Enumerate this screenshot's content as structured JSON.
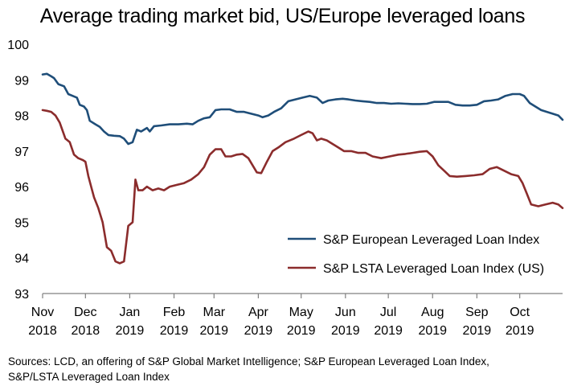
{
  "chart_data": {
    "type": "line",
    "title": "Average trading market bid, US/Europe leveraged loans",
    "xlabel": "",
    "ylabel": "",
    "ylim": [
      93,
      100
    ],
    "yticks": [
      "93",
      "94",
      "95",
      "96",
      "97",
      "98",
      "99",
      "100"
    ],
    "x_range": [
      "2018-11-01",
      "2019-10-31"
    ],
    "xticks": [
      {
        "month": "Nov",
        "year": "2018",
        "date": "2018-11-01"
      },
      {
        "month": "Dec",
        "year": "2018",
        "date": "2018-12-01"
      },
      {
        "month": "Jan",
        "year": "2019",
        "date": "2019-01-01"
      },
      {
        "month": "Feb",
        "year": "2019",
        "date": "2019-02-01"
      },
      {
        "month": "Mar",
        "year": "2019",
        "date": "2019-03-01"
      },
      {
        "month": "Apr",
        "year": "2019",
        "date": "2019-04-01"
      },
      {
        "month": "May",
        "year": "2019",
        "date": "2019-05-01"
      },
      {
        "month": "Jun",
        "year": "2019",
        "date": "2019-06-01"
      },
      {
        "month": "Jul",
        "year": "2019",
        "date": "2019-07-01"
      },
      {
        "month": "Aug",
        "year": "2019",
        "date": "2019-08-01"
      },
      {
        "month": "Sep",
        "year": "2019",
        "date": "2019-09-01"
      },
      {
        "month": "Oct",
        "year": "2019",
        "date": "2019-10-01"
      }
    ],
    "grid": false,
    "legend_position": "bottom-right",
    "series": [
      {
        "name": "S&P European Leveraged Loan Index",
        "color": "#1f4e79",
        "points": [
          [
            "2018-11-01",
            99.15
          ],
          [
            "2018-11-04",
            99.17
          ],
          [
            "2018-11-07",
            99.1
          ],
          [
            "2018-11-09",
            99.05
          ],
          [
            "2018-11-12",
            98.88
          ],
          [
            "2018-11-16",
            98.82
          ],
          [
            "2018-11-19",
            98.6
          ],
          [
            "2018-11-22",
            98.55
          ],
          [
            "2018-11-25",
            98.5
          ],
          [
            "2018-11-27",
            98.3
          ],
          [
            "2018-11-30",
            98.25
          ],
          [
            "2018-12-02",
            98.15
          ],
          [
            "2018-12-04",
            97.85
          ],
          [
            "2018-12-08",
            97.75
          ],
          [
            "2018-12-11",
            97.68
          ],
          [
            "2018-12-14",
            97.55
          ],
          [
            "2018-12-17",
            97.45
          ],
          [
            "2018-12-21",
            97.43
          ],
          [
            "2018-12-25",
            97.42
          ],
          [
            "2018-12-28",
            97.35
          ],
          [
            "2018-12-31",
            97.2
          ],
          [
            "2019-01-03",
            97.25
          ],
          [
            "2019-01-06",
            97.6
          ],
          [
            "2019-01-09",
            97.55
          ],
          [
            "2019-01-13",
            97.65
          ],
          [
            "2019-01-15",
            97.55
          ],
          [
            "2019-01-18",
            97.7
          ],
          [
            "2019-01-23",
            97.72
          ],
          [
            "2019-01-29",
            97.75
          ],
          [
            "2019-02-04",
            97.75
          ],
          [
            "2019-02-10",
            97.77
          ],
          [
            "2019-02-14",
            97.75
          ],
          [
            "2019-02-18",
            97.85
          ],
          [
            "2019-02-22",
            97.92
          ],
          [
            "2019-02-26",
            97.95
          ],
          [
            "2019-03-02",
            98.15
          ],
          [
            "2019-03-06",
            98.17
          ],
          [
            "2019-03-12",
            98.17
          ],
          [
            "2019-03-17",
            98.1
          ],
          [
            "2019-03-22",
            98.1
          ],
          [
            "2019-03-27",
            98.05
          ],
          [
            "2019-04-01",
            98.0
          ],
          [
            "2019-04-04",
            97.95
          ],
          [
            "2019-04-08",
            98.0
          ],
          [
            "2019-04-12",
            98.1
          ],
          [
            "2019-04-17",
            98.2
          ],
          [
            "2019-04-22",
            98.4
          ],
          [
            "2019-04-27",
            98.45
          ],
          [
            "2019-05-02",
            98.5
          ],
          [
            "2019-05-07",
            98.55
          ],
          [
            "2019-05-12",
            98.5
          ],
          [
            "2019-05-16",
            98.35
          ],
          [
            "2019-05-20",
            98.42
          ],
          [
            "2019-05-25",
            98.45
          ],
          [
            "2019-05-30",
            98.47
          ],
          [
            "2019-06-03",
            98.45
          ],
          [
            "2019-06-08",
            98.42
          ],
          [
            "2019-06-13",
            98.4
          ],
          [
            "2019-06-18",
            98.38
          ],
          [
            "2019-06-23",
            98.35
          ],
          [
            "2019-06-28",
            98.35
          ],
          [
            "2019-07-03",
            98.33
          ],
          [
            "2019-07-08",
            98.34
          ],
          [
            "2019-07-13",
            98.33
          ],
          [
            "2019-07-18",
            98.32
          ],
          [
            "2019-07-23",
            98.32
          ],
          [
            "2019-07-28",
            98.33
          ],
          [
            "2019-08-02",
            98.38
          ],
          [
            "2019-08-07",
            98.38
          ],
          [
            "2019-08-12",
            98.38
          ],
          [
            "2019-08-17",
            98.3
          ],
          [
            "2019-08-22",
            98.28
          ],
          [
            "2019-08-27",
            98.28
          ],
          [
            "2019-09-01",
            98.3
          ],
          [
            "2019-09-06",
            98.4
          ],
          [
            "2019-09-11",
            98.42
          ],
          [
            "2019-09-16",
            98.45
          ],
          [
            "2019-09-21",
            98.55
          ],
          [
            "2019-09-26",
            98.6
          ],
          [
            "2019-10-01",
            98.6
          ],
          [
            "2019-10-04",
            98.55
          ],
          [
            "2019-10-08",
            98.35
          ],
          [
            "2019-10-12",
            98.25
          ],
          [
            "2019-10-16",
            98.15
          ],
          [
            "2019-10-20",
            98.1
          ],
          [
            "2019-10-24",
            98.05
          ],
          [
            "2019-10-28",
            98.0
          ],
          [
            "2019-10-31",
            97.88
          ]
        ]
      },
      {
        "name": "S&P LSTA Leveraged Loan Index (US)",
        "color": "#8b2c2c",
        "points": [
          [
            "2018-11-01",
            98.15
          ],
          [
            "2018-11-04",
            98.13
          ],
          [
            "2018-11-07",
            98.1
          ],
          [
            "2018-11-10",
            98.0
          ],
          [
            "2018-11-13",
            97.8
          ],
          [
            "2018-11-17",
            97.35
          ],
          [
            "2018-11-20",
            97.25
          ],
          [
            "2018-11-23",
            96.9
          ],
          [
            "2018-11-26",
            96.8
          ],
          [
            "2018-11-29",
            96.75
          ],
          [
            "2018-12-01",
            96.7
          ],
          [
            "2018-12-03",
            96.3
          ],
          [
            "2018-12-05",
            96.0
          ],
          [
            "2018-12-07",
            95.7
          ],
          [
            "2018-12-10",
            95.4
          ],
          [
            "2018-12-13",
            95.0
          ],
          [
            "2018-12-16",
            94.3
          ],
          [
            "2018-12-19",
            94.2
          ],
          [
            "2018-12-22",
            93.9
          ],
          [
            "2018-12-25",
            93.85
          ],
          [
            "2018-12-28",
            93.9
          ],
          [
            "2018-12-31",
            94.9
          ],
          [
            "2019-01-03",
            95.0
          ],
          [
            "2019-01-05",
            96.2
          ],
          [
            "2019-01-07",
            95.9
          ],
          [
            "2019-01-10",
            95.9
          ],
          [
            "2019-01-13",
            96.0
          ],
          [
            "2019-01-17",
            95.9
          ],
          [
            "2019-01-21",
            95.95
          ],
          [
            "2019-01-25",
            95.9
          ],
          [
            "2019-01-29",
            96.0
          ],
          [
            "2019-02-03",
            96.05
          ],
          [
            "2019-02-08",
            96.1
          ],
          [
            "2019-02-13",
            96.2
          ],
          [
            "2019-02-18",
            96.35
          ],
          [
            "2019-02-22",
            96.55
          ],
          [
            "2019-02-26",
            96.9
          ],
          [
            "2019-03-02",
            97.05
          ],
          [
            "2019-03-06",
            97.05
          ],
          [
            "2019-03-09",
            96.85
          ],
          [
            "2019-03-13",
            96.85
          ],
          [
            "2019-03-17",
            96.9
          ],
          [
            "2019-03-21",
            96.92
          ],
          [
            "2019-03-25",
            96.8
          ],
          [
            "2019-03-28",
            96.6
          ],
          [
            "2019-03-31",
            96.4
          ],
          [
            "2019-04-03",
            96.38
          ],
          [
            "2019-04-07",
            96.7
          ],
          [
            "2019-04-11",
            97.0
          ],
          [
            "2019-04-15",
            97.1
          ],
          [
            "2019-04-20",
            97.25
          ],
          [
            "2019-04-26",
            97.35
          ],
          [
            "2019-05-01",
            97.45
          ],
          [
            "2019-05-06",
            97.55
          ],
          [
            "2019-05-09",
            97.5
          ],
          [
            "2019-05-12",
            97.3
          ],
          [
            "2019-05-15",
            97.35
          ],
          [
            "2019-05-19",
            97.3
          ],
          [
            "2019-05-23",
            97.2
          ],
          [
            "2019-05-27",
            97.1
          ],
          [
            "2019-05-31",
            97.0
          ],
          [
            "2019-06-05",
            97.0
          ],
          [
            "2019-06-10",
            96.95
          ],
          [
            "2019-06-15",
            96.95
          ],
          [
            "2019-06-20",
            96.85
          ],
          [
            "2019-06-26",
            96.8
          ],
          [
            "2019-07-02",
            96.85
          ],
          [
            "2019-07-08",
            96.9
          ],
          [
            "2019-07-13",
            96.92
          ],
          [
            "2019-07-18",
            96.95
          ],
          [
            "2019-07-23",
            96.98
          ],
          [
            "2019-07-28",
            97.0
          ],
          [
            "2019-08-01",
            96.85
          ],
          [
            "2019-08-05",
            96.6
          ],
          [
            "2019-08-09",
            96.45
          ],
          [
            "2019-08-13",
            96.3
          ],
          [
            "2019-08-18",
            96.28
          ],
          [
            "2019-08-24",
            96.3
          ],
          [
            "2019-08-30",
            96.32
          ],
          [
            "2019-09-05",
            96.35
          ],
          [
            "2019-09-10",
            96.5
          ],
          [
            "2019-09-15",
            96.55
          ],
          [
            "2019-09-20",
            96.45
          ],
          [
            "2019-09-25",
            96.35
          ],
          [
            "2019-09-30",
            96.3
          ],
          [
            "2019-10-03",
            96.1
          ],
          [
            "2019-10-06",
            95.8
          ],
          [
            "2019-10-09",
            95.5
          ],
          [
            "2019-10-14",
            95.45
          ],
          [
            "2019-10-19",
            95.5
          ],
          [
            "2019-10-24",
            95.55
          ],
          [
            "2019-10-28",
            95.5
          ],
          [
            "2019-10-31",
            95.4
          ]
        ]
      }
    ]
  },
  "footer": {
    "source_line1": "Sources: LCD, an offering of S&P Global Market Intelligence; S&P European Leveraged Loan Index,",
    "source_line2": "S&P/LSTA Leveraged Loan Index"
  }
}
